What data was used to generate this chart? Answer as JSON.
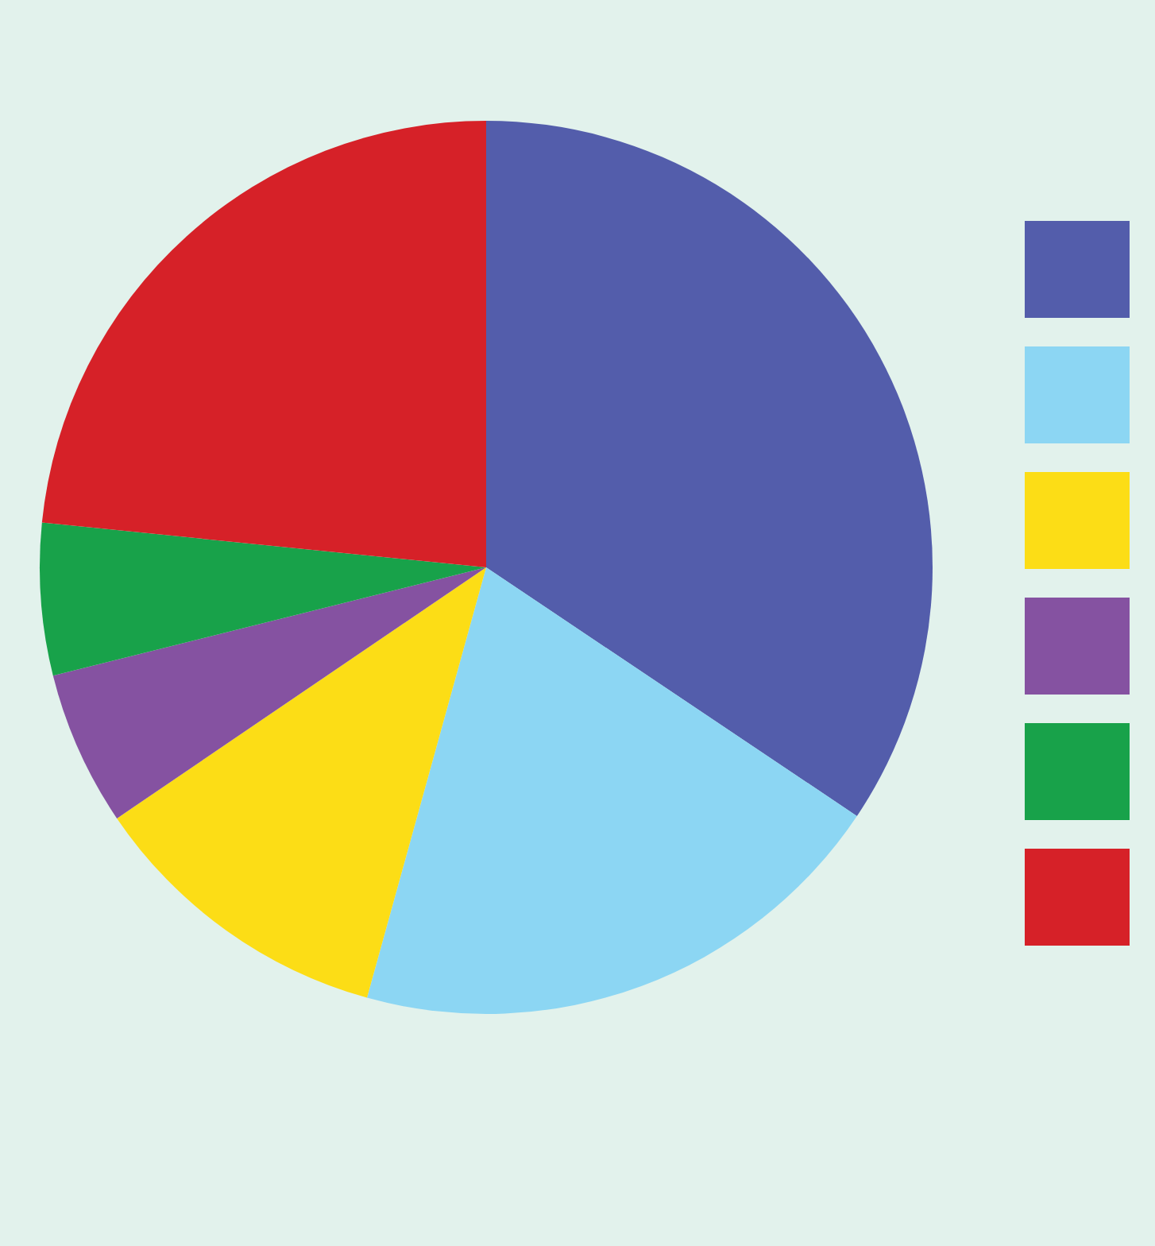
{
  "chart_data": {
    "type": "pie",
    "categories": [
      null,
      null,
      null,
      null,
      null,
      null
    ],
    "values": [
      34.4,
      19.9,
      11.2,
      5.6,
      5.5,
      23.4
    ],
    "colors": [
      "#535dab",
      "#8cd6f3",
      "#fcdd16",
      "#8552a1",
      "#18a24a",
      "#d62128"
    ]
  }
}
